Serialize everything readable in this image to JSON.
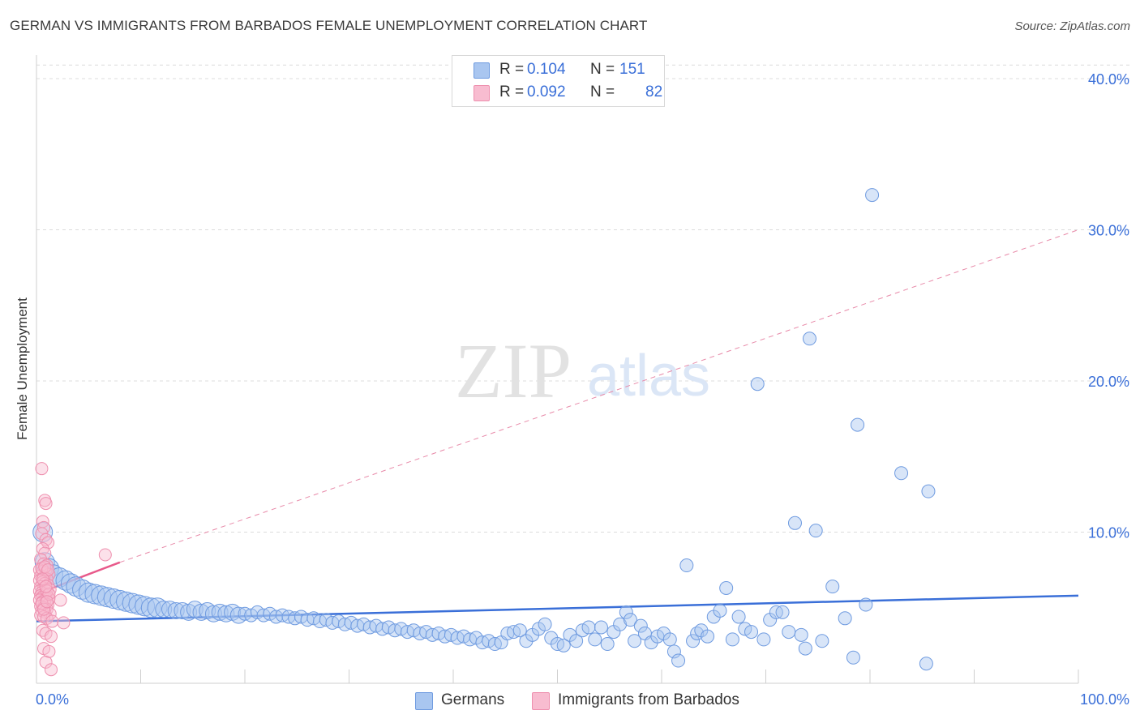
{
  "title": "GERMAN VS IMMIGRANTS FROM BARBADOS FEMALE UNEMPLOYMENT CORRELATION CHART",
  "source": "Source: ZipAtlas.com",
  "watermark": {
    "zip": "ZIP",
    "atlas": "atlas"
  },
  "legend": {
    "r_key": "R =",
    "n_key": "N =",
    "rows": [
      {
        "r": "0.104",
        "n": "151",
        "color": "#a9c6f0",
        "border": "#6f9be0"
      },
      {
        "r": "0.092",
        "n": "82",
        "color": "#f8bcd0",
        "border": "#ee8fae"
      }
    ]
  },
  "bottom_legend": [
    {
      "label": "Germans",
      "color": "#a9c6f0",
      "border": "#6f9be0"
    },
    {
      "label": "Immigrants from Barbados",
      "color": "#f8bcd0",
      "border": "#ee8fae"
    }
  ],
  "chart_data": {
    "type": "scatter",
    "title": "GERMAN VS IMMIGRANTS FROM BARBADOS FEMALE UNEMPLOYMENT CORRELATION CHART",
    "xlabel": "",
    "ylabel": "Female Unemployment",
    "xlim": [
      0,
      100
    ],
    "ylim": [
      0,
      42
    ],
    "x_tick_labels": [
      "0.0%",
      "100.0%"
    ],
    "y_ticks": [
      10,
      20,
      30,
      40
    ],
    "y_tick_labels": [
      "10.0%",
      "20.0%",
      "30.0%",
      "40.0%"
    ],
    "grid": true,
    "colors": {
      "germans": "#3a6fd8",
      "barbados": "#e8598a",
      "axis_text": "#3a6fd8"
    },
    "series": [
      {
        "name": "Germans",
        "r": 0.104,
        "n": 151,
        "trend": {
          "x": [
            0,
            100
          ],
          "y": [
            4.1,
            5.8
          ],
          "style": "solid"
        },
        "points": [
          [
            0.6,
            10.0
          ],
          [
            0.8,
            8.0
          ],
          [
            1.2,
            7.6
          ],
          [
            1.6,
            7.2
          ],
          [
            2.2,
            7.0
          ],
          [
            2.8,
            6.8
          ],
          [
            3.3,
            6.6
          ],
          [
            3.8,
            6.4
          ],
          [
            4.4,
            6.2
          ],
          [
            5.0,
            6.0
          ],
          [
            5.6,
            5.9
          ],
          [
            6.2,
            5.8
          ],
          [
            6.8,
            5.7
          ],
          [
            7.4,
            5.6
          ],
          [
            8.0,
            5.5
          ],
          [
            8.6,
            5.4
          ],
          [
            9.2,
            5.3
          ],
          [
            9.8,
            5.2
          ],
          [
            10.4,
            5.1
          ],
          [
            11.0,
            5.0
          ],
          [
            11.6,
            5.0
          ],
          [
            12.2,
            4.9
          ],
          [
            12.8,
            4.9
          ],
          [
            13.4,
            4.8
          ],
          [
            14.0,
            4.8
          ],
          [
            14.6,
            4.7
          ],
          [
            15.2,
            4.9
          ],
          [
            15.8,
            4.7
          ],
          [
            16.4,
            4.8
          ],
          [
            17.0,
            4.6
          ],
          [
            17.6,
            4.7
          ],
          [
            18.2,
            4.6
          ],
          [
            18.8,
            4.7
          ],
          [
            19.4,
            4.5
          ],
          [
            20.0,
            4.6
          ],
          [
            20.6,
            4.5
          ],
          [
            21.2,
            4.7
          ],
          [
            21.8,
            4.5
          ],
          [
            22.4,
            4.6
          ],
          [
            23.0,
            4.4
          ],
          [
            23.6,
            4.5
          ],
          [
            24.2,
            4.4
          ],
          [
            24.8,
            4.3
          ],
          [
            25.4,
            4.4
          ],
          [
            26.0,
            4.2
          ],
          [
            26.6,
            4.3
          ],
          [
            27.2,
            4.1
          ],
          [
            27.8,
            4.2
          ],
          [
            28.4,
            4.0
          ],
          [
            29.0,
            4.1
          ],
          [
            29.6,
            3.9
          ],
          [
            30.2,
            4.0
          ],
          [
            30.8,
            3.8
          ],
          [
            31.4,
            3.9
          ],
          [
            32.0,
            3.7
          ],
          [
            32.6,
            3.8
          ],
          [
            33.2,
            3.6
          ],
          [
            33.8,
            3.7
          ],
          [
            34.4,
            3.5
          ],
          [
            35.0,
            3.6
          ],
          [
            35.6,
            3.4
          ],
          [
            36.2,
            3.5
          ],
          [
            36.8,
            3.3
          ],
          [
            37.4,
            3.4
          ],
          [
            38.0,
            3.2
          ],
          [
            38.6,
            3.3
          ],
          [
            39.2,
            3.1
          ],
          [
            39.8,
            3.2
          ],
          [
            40.4,
            3.0
          ],
          [
            41.0,
            3.1
          ],
          [
            41.6,
            2.9
          ],
          [
            42.2,
            3.0
          ],
          [
            42.8,
            2.7
          ],
          [
            43.4,
            2.8
          ],
          [
            44.0,
            2.6
          ],
          [
            44.6,
            2.7
          ],
          [
            45.2,
            3.3
          ],
          [
            45.8,
            3.4
          ],
          [
            46.4,
            3.5
          ],
          [
            47.0,
            2.8
          ],
          [
            47.6,
            3.2
          ],
          [
            48.2,
            3.6
          ],
          [
            48.8,
            3.9
          ],
          [
            49.4,
            3.0
          ],
          [
            50.0,
            2.6
          ],
          [
            50.6,
            2.5
          ],
          [
            51.2,
            3.2
          ],
          [
            51.8,
            2.8
          ],
          [
            52.4,
            3.5
          ],
          [
            53.0,
            3.7
          ],
          [
            53.6,
            2.9
          ],
          [
            54.2,
            3.7
          ],
          [
            54.8,
            2.6
          ],
          [
            55.4,
            3.4
          ],
          [
            56.0,
            3.9
          ],
          [
            56.6,
            4.7
          ],
          [
            57.0,
            4.2
          ],
          [
            57.4,
            2.8
          ],
          [
            58.0,
            3.8
          ],
          [
            58.4,
            3.3
          ],
          [
            59.0,
            2.7
          ],
          [
            59.6,
            3.1
          ],
          [
            60.2,
            3.3
          ],
          [
            60.8,
            2.9
          ],
          [
            61.2,
            2.1
          ],
          [
            61.6,
            1.5
          ],
          [
            62.4,
            7.8
          ],
          [
            63.0,
            2.8
          ],
          [
            63.4,
            3.3
          ],
          [
            63.8,
            3.5
          ],
          [
            64.4,
            3.1
          ],
          [
            65.0,
            4.4
          ],
          [
            65.6,
            4.8
          ],
          [
            66.2,
            6.3
          ],
          [
            66.8,
            2.9
          ],
          [
            67.4,
            4.4
          ],
          [
            68.0,
            3.6
          ],
          [
            68.6,
            3.4
          ],
          [
            69.2,
            19.8
          ],
          [
            69.8,
            2.9
          ],
          [
            70.4,
            4.2
          ],
          [
            71.0,
            4.7
          ],
          [
            71.6,
            4.7
          ],
          [
            72.2,
            3.4
          ],
          [
            72.8,
            10.6
          ],
          [
            73.4,
            3.2
          ],
          [
            73.8,
            2.3
          ],
          [
            74.2,
            22.8
          ],
          [
            74.8,
            10.1
          ],
          [
            75.4,
            2.8
          ],
          [
            76.4,
            6.4
          ],
          [
            77.6,
            4.3
          ],
          [
            78.4,
            1.7
          ],
          [
            78.8,
            17.1
          ],
          [
            79.6,
            5.2
          ],
          [
            80.2,
            32.3
          ],
          [
            83.0,
            13.9
          ],
          [
            85.4,
            1.3
          ],
          [
            85.6,
            12.7
          ]
        ]
      },
      {
        "name": "Immigrants from Barbados",
        "r": 0.092,
        "n": 82,
        "trend": {
          "x": [
            0,
            8
          ],
          "y": [
            5.9,
            8.0
          ],
          "style": "solid",
          "extended": {
            "x": [
              8,
              100
            ],
            "y": [
              8.0,
              30.0
            ],
            "style": "dashed"
          }
        },
        "points": [
          [
            0.5,
            14.2
          ],
          [
            0.8,
            12.1
          ],
          [
            0.9,
            11.9
          ],
          [
            0.6,
            10.7
          ],
          [
            0.7,
            10.3
          ],
          [
            0.5,
            9.9
          ],
          [
            0.9,
            9.5
          ],
          [
            1.1,
            9.3
          ],
          [
            0.6,
            8.9
          ],
          [
            0.8,
            8.6
          ],
          [
            0.4,
            8.2
          ],
          [
            0.7,
            7.9
          ],
          [
            1.0,
            7.8
          ],
          [
            0.3,
            7.5
          ],
          [
            0.6,
            7.4
          ],
          [
            0.9,
            7.3
          ],
          [
            1.2,
            7.2
          ],
          [
            0.4,
            7.1
          ],
          [
            0.7,
            7.0
          ],
          [
            1.0,
            6.9
          ],
          [
            0.3,
            6.8
          ],
          [
            0.6,
            6.7
          ],
          [
            0.8,
            6.6
          ],
          [
            1.1,
            6.5
          ],
          [
            0.4,
            6.4
          ],
          [
            0.7,
            6.3
          ],
          [
            0.9,
            6.2
          ],
          [
            1.3,
            6.2
          ],
          [
            0.3,
            6.1
          ],
          [
            0.5,
            6.0
          ],
          [
            0.8,
            5.9
          ],
          [
            1.0,
            5.8
          ],
          [
            0.4,
            5.8
          ],
          [
            0.6,
            5.7
          ],
          [
            0.9,
            5.6
          ],
          [
            1.2,
            5.6
          ],
          [
            0.3,
            5.5
          ],
          [
            0.6,
            5.4
          ],
          [
            0.8,
            5.3
          ],
          [
            1.1,
            5.2
          ],
          [
            0.4,
            5.1
          ],
          [
            0.7,
            5.0
          ],
          [
            1.0,
            4.9
          ],
          [
            0.5,
            4.8
          ],
          [
            0.8,
            4.7
          ],
          [
            1.3,
            4.6
          ],
          [
            0.4,
            4.5
          ],
          [
            0.7,
            4.4
          ],
          [
            1.0,
            4.3
          ],
          [
            1.5,
            4.1
          ],
          [
            2.3,
            5.5
          ],
          [
            2.6,
            4.0
          ],
          [
            0.6,
            3.5
          ],
          [
            0.9,
            3.3
          ],
          [
            1.4,
            3.1
          ],
          [
            0.7,
            2.3
          ],
          [
            1.2,
            2.1
          ],
          [
            0.9,
            1.4
          ],
          [
            1.4,
            0.9
          ],
          [
            6.6,
            8.5
          ],
          [
            0.5,
            7.6
          ],
          [
            0.8,
            7.7
          ],
          [
            1.0,
            6.1
          ],
          [
            1.2,
            5.9
          ],
          [
            0.5,
            5.3
          ],
          [
            0.7,
            4.9
          ],
          [
            1.1,
            7.5
          ],
          [
            0.6,
            6.9
          ],
          [
            0.9,
            6.4
          ],
          [
            1.0,
            5.4
          ]
        ]
      }
    ]
  }
}
